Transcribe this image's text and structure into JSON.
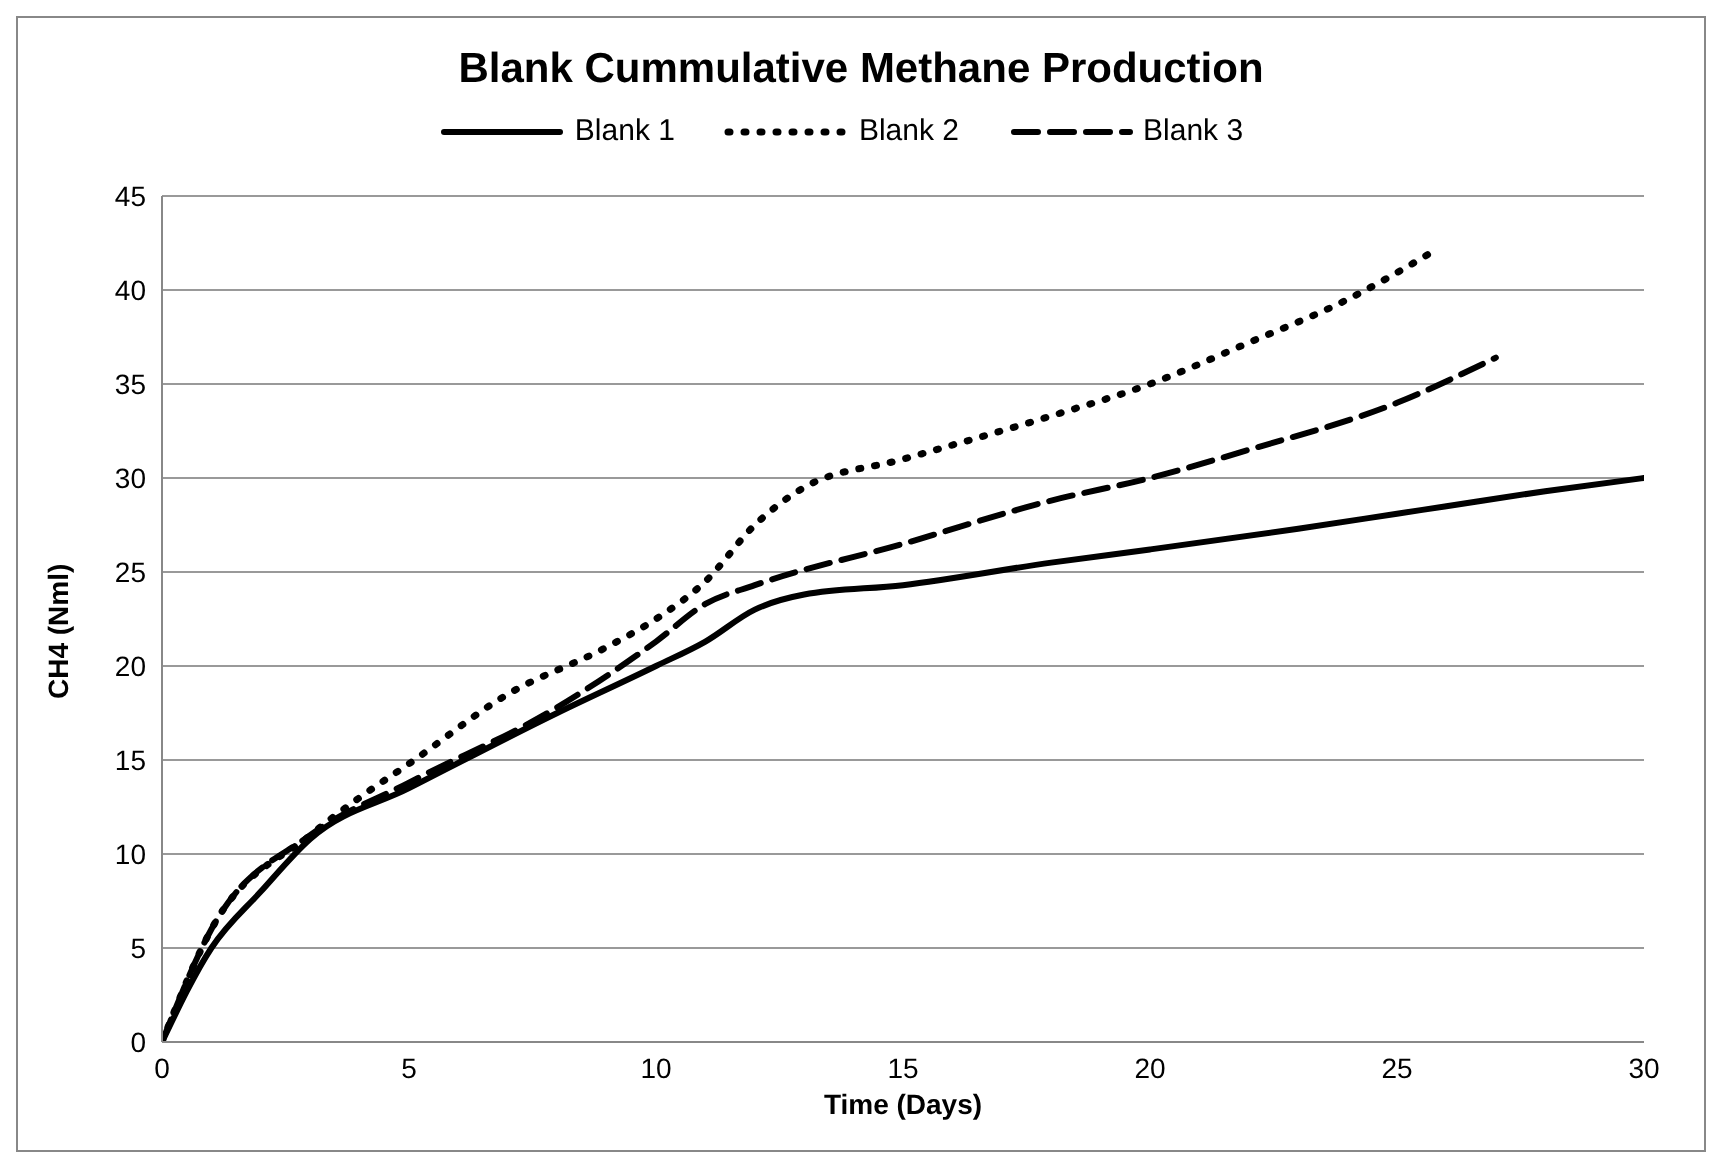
{
  "chart_data": {
    "type": "line",
    "title": "Blank Cummulative Methane Production",
    "xlabel": "Time (Days)",
    "ylabel": "CH4 (Nml)",
    "xlim": [
      0,
      30
    ],
    "xticks": [
      0,
      5,
      10,
      15,
      20,
      25,
      30
    ],
    "ylim": [
      0,
      45
    ],
    "yticks": [
      0,
      5,
      10,
      15,
      20,
      25,
      30,
      35,
      40,
      45
    ],
    "grid": "y",
    "legend": "top",
    "marker": "none",
    "series": [
      {
        "name": "Blank 1",
        "color": "#000000",
        "line_style": "solid",
        "x": [
          0,
          1,
          2,
          3,
          5,
          8,
          10,
          11,
          12,
          13,
          15,
          18,
          20,
          23,
          25,
          26,
          28,
          30
        ],
        "values": [
          0,
          5,
          8,
          10.8,
          13.5,
          17.5,
          20,
          21.3,
          23,
          23.8,
          24.3,
          25.5,
          26.2,
          27.3,
          28.1,
          28.5,
          29.3,
          30
        ]
      },
      {
        "name": "Blank 2",
        "color": "#000000",
        "line_style": "dotted",
        "x": [
          0,
          1,
          3,
          4,
          5,
          7,
          9,
          10,
          11,
          12,
          13,
          15,
          18,
          20,
          22,
          24,
          25.7
        ],
        "values": [
          0,
          6,
          11,
          13,
          14.8,
          18.5,
          21,
          22.5,
          24.5,
          27.5,
          29.5,
          31,
          33.3,
          35,
          37.2,
          39.5,
          42
        ]
      },
      {
        "name": "Blank 3",
        "color": "#000000",
        "line_style": "dashed",
        "x": [
          0,
          1,
          3,
          5,
          8,
          10,
          11,
          12,
          15,
          18,
          20,
          22,
          25,
          27
        ],
        "values": [
          0,
          6,
          11,
          13.8,
          17.8,
          21.3,
          23.3,
          24.3,
          26.5,
          28.8,
          30,
          31.5,
          34,
          36.4
        ]
      }
    ]
  }
}
